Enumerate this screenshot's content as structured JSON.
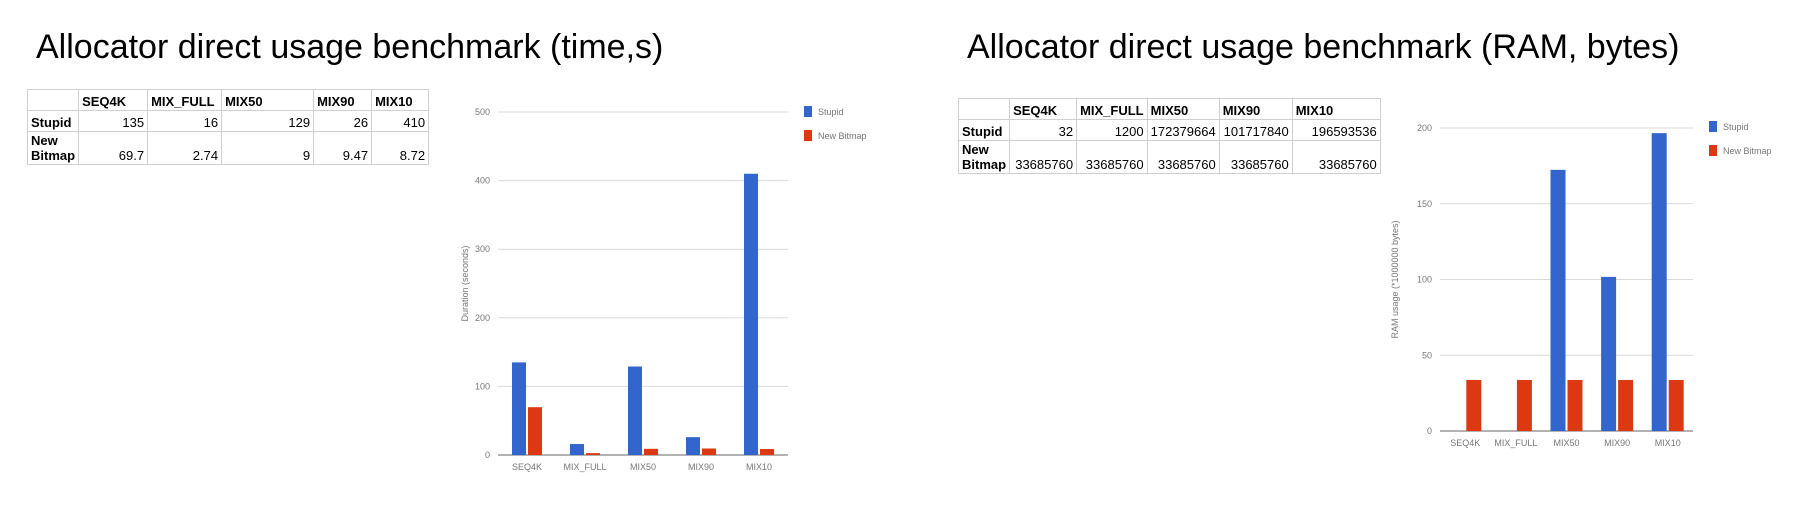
{
  "titles": {
    "left": "Allocator direct usage benchmark (time,s)",
    "right": "Allocator direct usage benchmark (RAM, bytes)"
  },
  "tables": {
    "time": {
      "columns": [
        "",
        "SEQ4K",
        "MIX_FULL",
        "MIX50",
        "MIX90",
        "MIX10"
      ],
      "rows": [
        {
          "label": "Stupid",
          "values": [
            "135",
            "16",
            "129",
            "26",
            "410"
          ]
        },
        {
          "label": "New\nBitmap",
          "values": [
            "69.7",
            "2.74",
            "9",
            "9.47",
            "8.72"
          ]
        }
      ]
    },
    "ram": {
      "columns": [
        "",
        "SEQ4K",
        "MIX_FULL",
        "MIX50",
        "MIX90",
        "MIX10"
      ],
      "rows": [
        {
          "label": "Stupid",
          "values": [
            "32",
            "1200",
            "172379664",
            "101717840",
            "196593536"
          ]
        },
        {
          "label": "New\nBitmap",
          "values": [
            "33685760",
            "33685760",
            "33685760",
            "33685760",
            "33685760"
          ]
        }
      ]
    }
  },
  "colors": {
    "stupid": "#3366cc",
    "new_bitmap": "#dc3912",
    "grid": "#d9d9d9",
    "axis": "#666666",
    "tick_text": "#777777"
  },
  "chart_data": [
    {
      "type": "bar",
      "categories": [
        "SEQ4K",
        "MIX_FULL",
        "MIX50",
        "MIX90",
        "MIX10"
      ],
      "series": [
        {
          "name": "Stupid",
          "values": [
            135,
            16,
            129,
            26,
            410
          ]
        },
        {
          "name": "New Bitmap",
          "values": [
            69.7,
            2.74,
            9,
            9.47,
            8.72
          ]
        }
      ],
      "title": "",
      "xlabel": "",
      "ylabel": "Duration (seconds)",
      "ylim": [
        0,
        500
      ],
      "yticks": [
        0,
        100,
        200,
        300,
        400,
        500
      ],
      "grid": true,
      "legend": "right"
    },
    {
      "type": "bar",
      "categories": [
        "SEQ4K",
        "MIX_FULL",
        "MIX50",
        "MIX90",
        "MIX10"
      ],
      "series": [
        {
          "name": "Stupid",
          "values": [
            3.2e-05,
            0.0012,
            172.379664,
            101.71784,
            196.593536
          ]
        },
        {
          "name": "New Bitmap",
          "values": [
            33.68576,
            33.68576,
            33.68576,
            33.68576,
            33.68576
          ]
        }
      ],
      "title": "",
      "xlabel": "",
      "ylabel": "RAM usage (*1000000 bytes)",
      "ylim": [
        0,
        200
      ],
      "yticks": [
        0,
        50,
        100,
        150,
        200
      ],
      "grid": true,
      "legend": "right"
    }
  ]
}
